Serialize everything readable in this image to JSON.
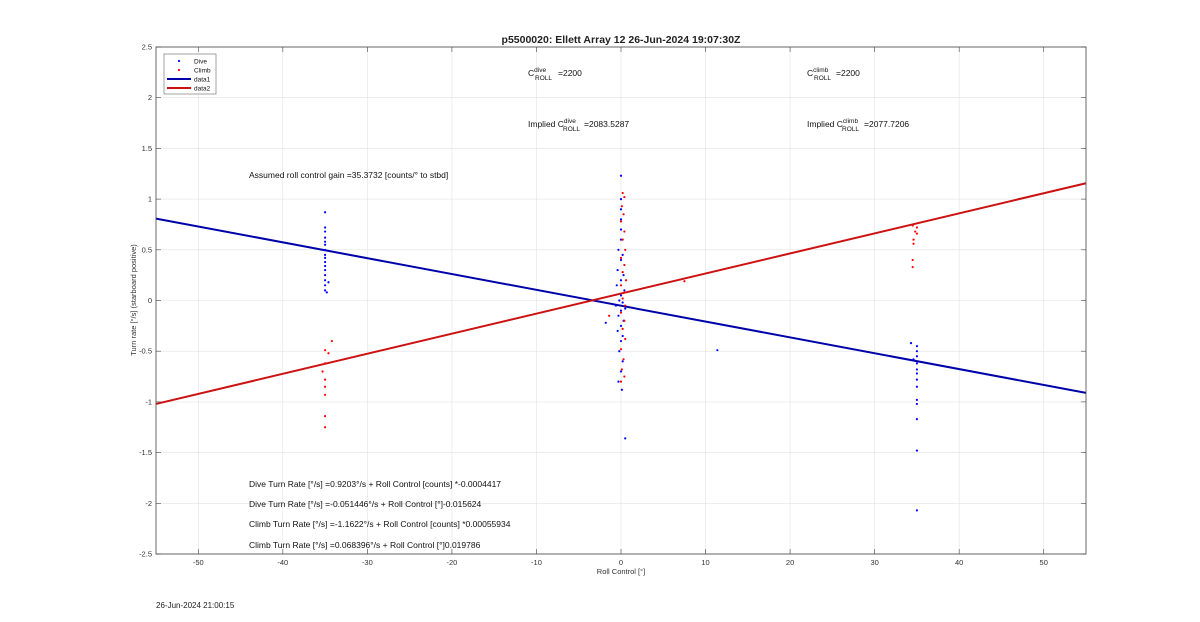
{
  "chart_data": {
    "type": "scatter",
    "title": "p5500020: Ellett Array 12 26-Jun-2024 19:07:30Z",
    "xlabel": "Roll Control [°]",
    "ylabel": "Turn rate [°/s] (starboard positive)",
    "xlim": [
      -55,
      55
    ],
    "ylim": [
      -2.5,
      2.5
    ],
    "xticks": [
      -50,
      -40,
      -30,
      -20,
      -10,
      0,
      10,
      20,
      30,
      40,
      50
    ],
    "yticks": [
      -2.5,
      -2,
      -1.5,
      -1,
      -0.5,
      0,
      0.5,
      1,
      1.5,
      2,
      2.5
    ],
    "xtick_labels": [
      "-50",
      "-40",
      "-30",
      "-20",
      "-10",
      "0",
      "10",
      "20",
      "30",
      "40",
      "50"
    ],
    "ytick_labels": [
      "-2.5",
      "-2",
      "-1.5",
      "-1",
      "-0.5",
      "0",
      "0.5",
      "1",
      "1.5",
      "2",
      "2.5"
    ],
    "grid": true,
    "legend_position": "top-left",
    "legend": [
      {
        "label": "Dive",
        "kind": "marker",
        "color": "#0000ff"
      },
      {
        "label": "Climb",
        "kind": "marker",
        "color": "#ff0000"
      },
      {
        "label": "data1",
        "kind": "line",
        "color": "#0000aa"
      },
      {
        "label": "data2",
        "kind": "line",
        "color": "#cc1111"
      }
    ],
    "colors": {
      "dive": "#0000ff",
      "climb": "#ff0000",
      "data1": "#0000aa",
      "data2": "#cc1111",
      "grid": "#e2e2e2",
      "axis": "#444444"
    },
    "series": [
      {
        "name": "Dive",
        "type": "scatter",
        "points": [
          [
            -35,
            0.87
          ],
          [
            -35,
            0.72
          ],
          [
            -35,
            0.68
          ],
          [
            -35,
            0.62
          ],
          [
            -35,
            0.58
          ],
          [
            -35,
            0.55
          ],
          [
            -35,
            0.5
          ],
          [
            -35,
            0.45
          ],
          [
            -35,
            0.42
          ],
          [
            -35,
            0.38
          ],
          [
            -35,
            0.34
          ],
          [
            -35,
            0.3
          ],
          [
            -35,
            0.25
          ],
          [
            -35,
            0.2
          ],
          [
            -35,
            0.15
          ],
          [
            -35,
            0.1
          ],
          [
            -34.6,
            0.18
          ],
          [
            -34.8,
            0.08
          ],
          [
            0,
            1.23
          ],
          [
            0,
            1.0
          ],
          [
            0,
            0.9
          ],
          [
            0,
            0.8
          ],
          [
            0,
            0.7
          ],
          [
            0,
            0.6
          ],
          [
            -0.3,
            0.5
          ],
          [
            0.2,
            0.45
          ],
          [
            0,
            0.4
          ],
          [
            -0.4,
            0.3
          ],
          [
            0.3,
            0.25
          ],
          [
            0,
            0.2
          ],
          [
            -0.5,
            0.15
          ],
          [
            0.4,
            0.1
          ],
          [
            0,
            0.05
          ],
          [
            -0.2,
            0.0
          ],
          [
            0.2,
            -0.02
          ],
          [
            -0.6,
            -0.05
          ],
          [
            0.5,
            -0.08
          ],
          [
            0,
            -0.1
          ],
          [
            -0.3,
            -0.15
          ],
          [
            0.3,
            -0.2
          ],
          [
            0,
            -0.25
          ],
          [
            -0.4,
            -0.3
          ],
          [
            0.2,
            -0.35
          ],
          [
            0,
            -0.4
          ],
          [
            -0.2,
            -0.5
          ],
          [
            0.2,
            -0.6
          ],
          [
            0,
            -0.7
          ],
          [
            -0.3,
            -0.8
          ],
          [
            0.1,
            -0.88
          ],
          [
            -1.8,
            -0.22
          ],
          [
            0.5,
            -1.36
          ],
          [
            11.4,
            -0.49
          ],
          [
            35,
            -0.45
          ],
          [
            34.3,
            -0.42
          ],
          [
            35,
            -0.5
          ],
          [
            35,
            -0.55
          ],
          [
            34.6,
            -0.58
          ],
          [
            35,
            -0.62
          ],
          [
            35,
            -0.68
          ],
          [
            35,
            -0.72
          ],
          [
            35,
            -0.78
          ],
          [
            35,
            -0.85
          ],
          [
            35,
            -0.98
          ],
          [
            35,
            -1.02
          ],
          [
            35,
            -1.17
          ],
          [
            35,
            -1.48
          ],
          [
            35,
            -2.07
          ]
        ]
      },
      {
        "name": "Climb",
        "type": "scatter",
        "points": [
          [
            -35,
            -0.49
          ],
          [
            -34.6,
            -0.52
          ],
          [
            -34.2,
            -0.4
          ],
          [
            -35,
            -0.62
          ],
          [
            -35.3,
            -0.7
          ],
          [
            -35,
            -0.78
          ],
          [
            -35,
            -0.85
          ],
          [
            -35,
            -0.93
          ],
          [
            -35,
            -1.14
          ],
          [
            -35,
            -1.25
          ],
          [
            0.2,
            1.06
          ],
          [
            0.4,
            1.02
          ],
          [
            0.1,
            0.93
          ],
          [
            0.3,
            0.85
          ],
          [
            0,
            0.78
          ],
          [
            0.4,
            0.68
          ],
          [
            0.2,
            0.6
          ],
          [
            0.5,
            0.5
          ],
          [
            0,
            0.42
          ],
          [
            0.4,
            0.35
          ],
          [
            0.2,
            0.28
          ],
          [
            0.6,
            0.2
          ],
          [
            0,
            0.15
          ],
          [
            0.4,
            0.08
          ],
          [
            0.2,
            0.02
          ],
          [
            0.5,
            -0.05
          ],
          [
            0,
            -0.12
          ],
          [
            0.4,
            -0.2
          ],
          [
            0.2,
            -0.28
          ],
          [
            0.5,
            -0.38
          ],
          [
            0,
            -0.48
          ],
          [
            0.3,
            -0.58
          ],
          [
            0.1,
            -0.68
          ],
          [
            0.4,
            -0.75
          ],
          [
            0,
            -0.8
          ],
          [
            -1.4,
            -0.15
          ],
          [
            7.5,
            0.19
          ],
          [
            34.5,
            0.74
          ],
          [
            35,
            0.72
          ],
          [
            34.8,
            0.68
          ],
          [
            35,
            0.66
          ],
          [
            34.6,
            0.6
          ],
          [
            34.6,
            0.56
          ],
          [
            34.5,
            0.4
          ],
          [
            34.5,
            0.33
          ]
        ]
      },
      {
        "name": "data1",
        "type": "line",
        "slope": -0.015624,
        "intercept": -0.051446
      },
      {
        "name": "data2",
        "type": "line",
        "slope": 0.019786,
        "intercept": 0.068396
      }
    ],
    "annotations": {
      "c_dive_label": "C",
      "c_dive_sup": "dive",
      "c_dive_sub": "ROLL",
      "c_dive_value": "=2200",
      "c_climb_label": "C",
      "c_climb_sup": "climb",
      "c_climb_sub": "ROLL",
      "c_climb_value": "=2200",
      "implied_dive_label": "Implied C",
      "implied_dive_sup": "dive",
      "implied_dive_sub": "ROLL",
      "implied_dive_value": "=2083.5287",
      "implied_climb_label": "Implied C",
      "implied_climb_sup": "climb",
      "implied_climb_sub": "ROLL",
      "implied_climb_value": "=2077.7206",
      "gain": "Assumed roll control gain =35.3732 [counts/° to stbd]",
      "eq1": "Dive Turn Rate [°/s] =0.9203°/s + Roll Control [counts] *-0.0004417",
      "eq2": "Dive Turn Rate [°/s] =-0.051446°/s + Roll Control [°]-0.015624",
      "eq3": "Climb Turn Rate [°/s] =-1.1622°/s + Roll Control [counts] *0.00055934",
      "eq4": "Climb Turn Rate [°/s] =0.068396°/s + Roll Control [°]0.019786"
    }
  },
  "footer": {
    "timestamp": "26-Jun-2024 21:00:15"
  }
}
